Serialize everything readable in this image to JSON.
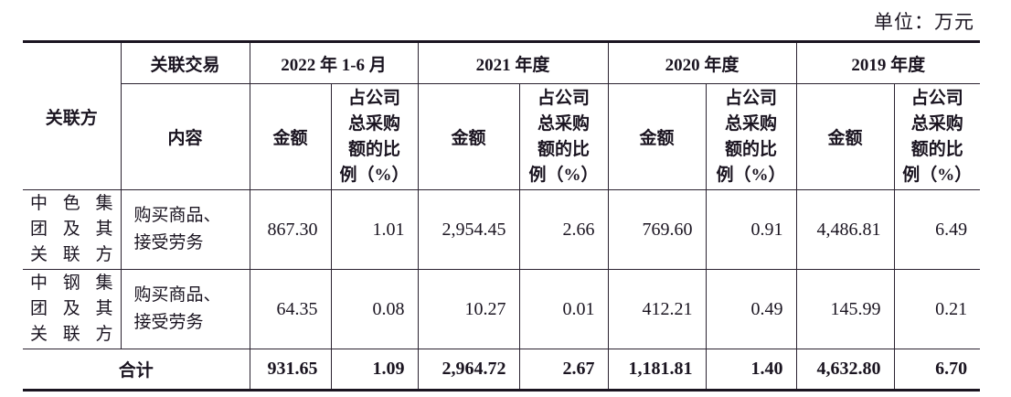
{
  "unit_label": "单位：万元",
  "header": {
    "party": "关联方",
    "transaction": "关联交易",
    "content": "内容",
    "periods": [
      "2022 年 1-6 月",
      "2021 年度",
      "2020 年度",
      "2019 年度"
    ],
    "amount": "金额",
    "ratio_lines": [
      "占公司",
      "总采购",
      "额的比",
      "例（%）"
    ]
  },
  "rows": [
    {
      "party_lines": [
        "中色集",
        "团及其",
        "关联方"
      ],
      "content_lines": [
        "购买商品、",
        "接受劳务"
      ],
      "values": [
        "867.30",
        "1.01",
        "2,954.45",
        "2.66",
        "769.60",
        "0.91",
        "4,486.81",
        "6.49"
      ]
    },
    {
      "party_lines": [
        "中钢集",
        "团及其",
        "关联方"
      ],
      "content_lines": [
        "购买商品、",
        "接受劳务"
      ],
      "values": [
        "64.35",
        "0.08",
        "10.27",
        "0.01",
        "412.21",
        "0.49",
        "145.99",
        "0.21"
      ]
    }
  ],
  "total": {
    "label": "合计",
    "values": [
      "931.65",
      "1.09",
      "2,964.72",
      "2.67",
      "1,181.81",
      "1.40",
      "4,632.80",
      "6.70"
    ]
  }
}
